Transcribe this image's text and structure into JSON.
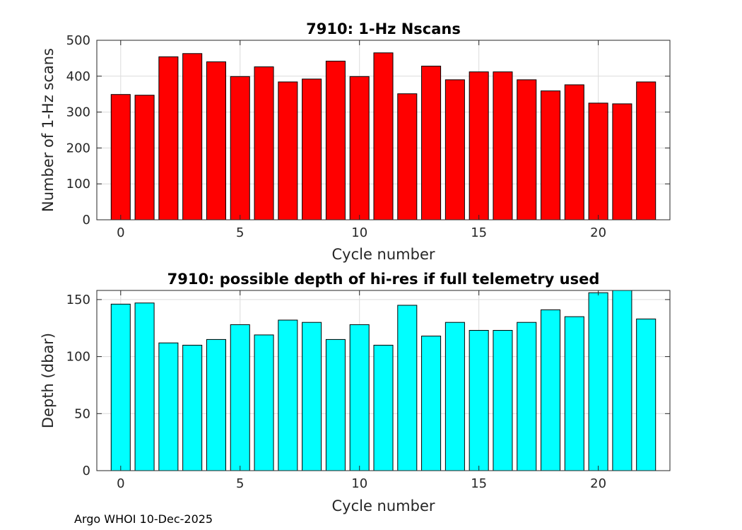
{
  "chart_data": [
    {
      "type": "bar",
      "title": "7910: 1-Hz Nscans",
      "xlabel": "Cycle number",
      "ylabel": "Number of 1-Hz scans",
      "x": [
        0,
        1,
        2,
        3,
        4,
        5,
        6,
        7,
        8,
        9,
        10,
        11,
        12,
        13,
        14,
        15,
        16,
        17,
        18,
        19,
        20,
        21,
        22
      ],
      "values": [
        349,
        347,
        454,
        463,
        440,
        399,
        426,
        384,
        392,
        442,
        399,
        465,
        351,
        428,
        390,
        412,
        412,
        390,
        359,
        376,
        325,
        323,
        384
      ],
      "xlim": [
        -1,
        23
      ],
      "ylim": [
        0,
        500
      ],
      "xticks": [
        0,
        5,
        10,
        15,
        20
      ],
      "yticks": [
        0,
        100,
        200,
        300,
        400,
        500
      ],
      "bar_color": "#ff0000",
      "grid": true
    },
    {
      "type": "bar",
      "title": "7910: possible depth of hi-res if full telemetry used",
      "xlabel": "Cycle number",
      "ylabel": "Depth (dbar)",
      "x": [
        0,
        1,
        2,
        3,
        4,
        5,
        6,
        7,
        8,
        9,
        10,
        11,
        12,
        13,
        14,
        15,
        16,
        17,
        18,
        19,
        20,
        21,
        22
      ],
      "values": [
        146,
        147,
        112,
        110,
        115,
        128,
        119,
        132,
        130,
        115,
        128,
        110,
        145,
        118,
        130,
        123,
        123,
        130,
        141,
        135,
        156,
        158,
        133
      ],
      "xlim": [
        -1,
        23
      ],
      "ylim": [
        0,
        158
      ],
      "xticks": [
        0,
        5,
        10,
        15,
        20
      ],
      "yticks": [
        0,
        50,
        100,
        150
      ],
      "bar_color": "#00ffff",
      "grid": true
    }
  ],
  "footer": "Argo WHOI 10-Dec-2025"
}
